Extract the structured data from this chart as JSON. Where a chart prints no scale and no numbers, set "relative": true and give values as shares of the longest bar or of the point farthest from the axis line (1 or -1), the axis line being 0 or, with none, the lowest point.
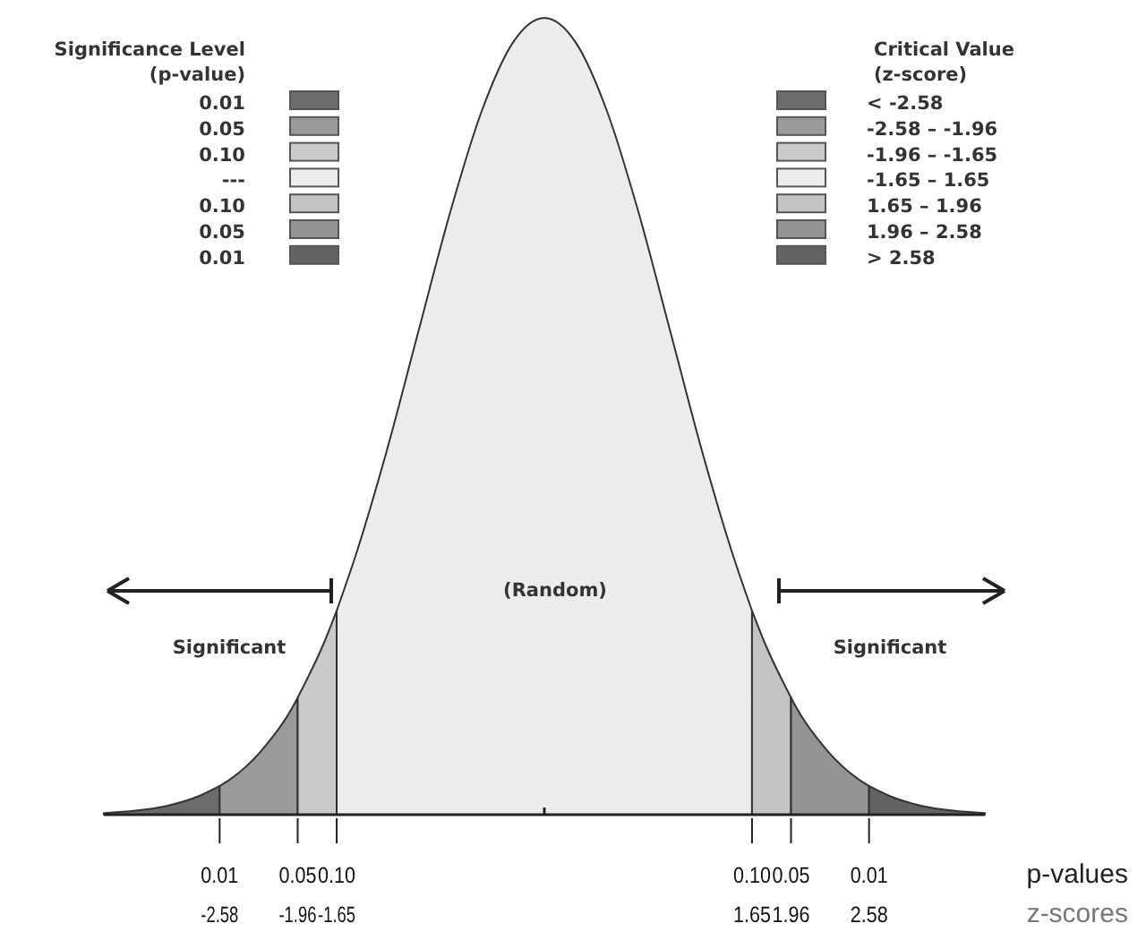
{
  "chart_data": {
    "type": "area",
    "relative": true,
    "xlim": [
      -3.5,
      3.5
    ],
    "xticks": [
      -2.58,
      -1.96,
      -1.65,
      {
        "value": 0,
        "label": null
      },
      1.65,
      1.96,
      2.58
    ],
    "xlabel": "z-scores",
    "legend": "top right",
    "legend_title": "Critical Value\n(z-score)",
    "series": [
      {
        "name": "< -2.58",
        "color": "#6b6b6b",
        "x": [
          -3.5,
          -3.25,
          -3,
          -2.75,
          -2.58
        ],
        "values": [
          0.002,
          0.005,
          0.011,
          0.023,
          0.036
        ]
      },
      {
        "name": "-2.58 – -1.96",
        "color": "#9a9a9a",
        "x": [
          -2.58,
          -2.5,
          -2.25,
          -2,
          -1.96
        ],
        "values": [
          0.036,
          0.044,
          0.08,
          0.135,
          0.147
        ]
      },
      {
        "name": "-1.96 – -1.65",
        "color": "#cacaca",
        "x": [
          -1.96,
          -1.75,
          -1.65
        ],
        "values": [
          0.147,
          0.216,
          0.256
        ]
      },
      {
        "name": "-1.65 – 1.65",
        "color": "#ececec",
        "x": [
          -1.65,
          -1.5,
          -1.25,
          -1,
          -0.75,
          -0.5,
          -0.25,
          0,
          0.25,
          0.5,
          0.75,
          1,
          1.25,
          1.5,
          1.65
        ],
        "values": [
          0.256,
          0.325,
          0.458,
          0.607,
          0.755,
          0.882,
          0.969,
          1,
          0.969,
          0.882,
          0.755,
          0.607,
          0.458,
          0.325,
          0.256
        ]
      },
      {
        "name": "1.65 – 1.96",
        "color": "#c4c4c4",
        "x": [
          1.65,
          1.75,
          1.96
        ],
        "values": [
          0.256,
          0.216,
          0.147
        ]
      },
      {
        "name": "1.96 – 2.58",
        "color": "#949494",
        "x": [
          1.96,
          2,
          2.25,
          2.5,
          2.58
        ],
        "values": [
          0.147,
          0.135,
          0.08,
          0.044,
          0.036
        ]
      },
      {
        "name": "> 2.58",
        "color": "#636363",
        "x": [
          2.58,
          2.75,
          3,
          3.25,
          3.5
        ],
        "values": [
          0.036,
          0.023,
          0.011,
          0.005,
          0.002
        ]
      }
    ],
    "annotations": [
      "Significance Level\n(p-value)",
      "0.01",
      "0.05",
      "0.10",
      "---",
      "0.10",
      "0.05",
      "0.01",
      "Significant",
      "(Random)",
      "Significant",
      "p-values",
      {
        "text": "0.01",
        "x": -2.58
      },
      {
        "text": "0.05",
        "x": -1.96
      },
      {
        "text": "0.10",
        "x": -1.65
      },
      {
        "text": "0.10",
        "x": 1.65
      },
      {
        "text": "0.05",
        "x": 1.96
      },
      {
        "text": "0.01",
        "x": 2.58
      }
    ]
  }
}
